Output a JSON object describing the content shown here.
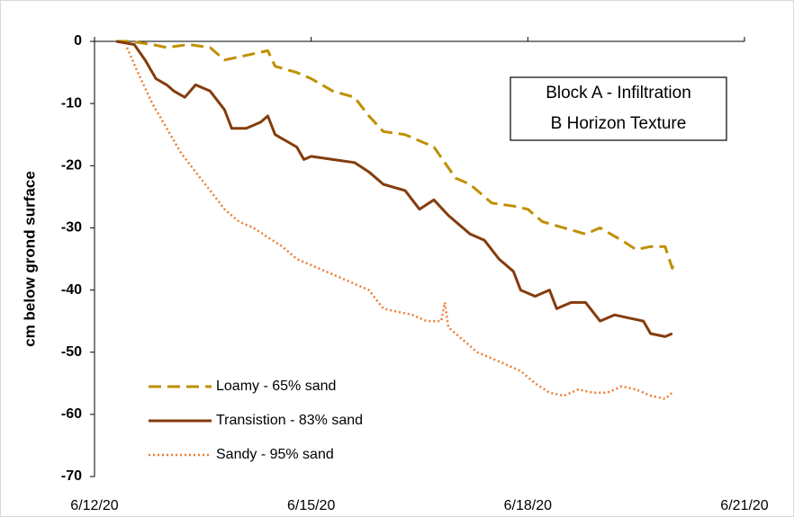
{
  "chart_data": {
    "type": "line",
    "ylabel": "cm below grond surface",
    "annotation": [
      "Block A - Infiltration",
      "B Horizon Texture"
    ],
    "xlim": [
      0,
      9
    ],
    "xticks": [
      {
        "value": 0,
        "label": "6/12/20"
      },
      {
        "value": 3,
        "label": "6/15/20"
      },
      {
        "value": 6,
        "label": "6/18/20"
      },
      {
        "value": 9,
        "label": "6/21/20"
      }
    ],
    "ylim": [
      -70,
      0
    ],
    "yticks": [
      0,
      -10,
      -20,
      -30,
      -40,
      -50,
      -60,
      -70
    ],
    "legend": "lower left",
    "series": [
      {
        "name": "Loamy - 65% sand",
        "color": "#bf9000",
        "dash": "dashed",
        "x": [
          0.3,
          0.5,
          0.8,
          1.0,
          1.3,
          1.6,
          1.8,
          2.0,
          2.2,
          2.4,
          2.5,
          2.8,
          3.0,
          3.3,
          3.6,
          3.8,
          4.0,
          4.3,
          4.5,
          4.7,
          5.0,
          5.2,
          5.5,
          5.8,
          6.0,
          6.2,
          6.5,
          6.8,
          7.0,
          7.3,
          7.5,
          7.7,
          7.9,
          8.0,
          8.02
        ],
        "values": [
          0,
          0,
          -0.5,
          -1,
          -0.5,
          -1,
          -3,
          -2.5,
          -2,
          -1.5,
          -4,
          -5,
          -6,
          -8,
          -9,
          -12,
          -14.5,
          -15,
          -16,
          -17,
          -22,
          -23,
          -26,
          -26.5,
          -27,
          -29,
          -30,
          -31,
          -30,
          -32,
          -33.5,
          -33,
          -33,
          -36.5,
          -35.5
        ]
      },
      {
        "name": "Transistion - 83% sand",
        "color": "#843c0c",
        "dash": "solid",
        "x": [
          0.3,
          0.55,
          0.7,
          0.85,
          1.0,
          1.1,
          1.25,
          1.4,
          1.6,
          1.8,
          1.9,
          2.1,
          2.3,
          2.4,
          2.5,
          2.8,
          2.9,
          3.0,
          3.3,
          3.6,
          3.8,
          4.0,
          4.3,
          4.5,
          4.7,
          4.9,
          5.2,
          5.4,
          5.6,
          5.8,
          5.9,
          6.1,
          6.3,
          6.4,
          6.6,
          6.8,
          7.0,
          7.2,
          7.4,
          7.6,
          7.7,
          7.9,
          8.0
        ],
        "values": [
          0,
          -0.5,
          -3,
          -6,
          -7,
          -8,
          -9,
          -7,
          -8,
          -11,
          -14,
          -14,
          -13,
          -12,
          -15,
          -17,
          -19,
          -18.5,
          -19,
          -19.5,
          -21,
          -23,
          -24,
          -27,
          -25.5,
          -28,
          -31,
          -32,
          -35,
          -37,
          -40,
          -41,
          -40,
          -43,
          -42,
          -42,
          -45,
          -44,
          -44.5,
          -45,
          -47,
          -47.5,
          -47
        ]
      },
      {
        "name": "Sandy - 95% sand",
        "color": "#ed7d31",
        "dash": "dotted",
        "x": [
          0.45,
          0.6,
          0.8,
          1.0,
          1.2,
          1.4,
          1.6,
          1.8,
          2.0,
          2.2,
          2.4,
          2.6,
          2.8,
          3.0,
          3.2,
          3.4,
          3.6,
          3.8,
          4.0,
          4.2,
          4.4,
          4.6,
          4.8,
          4.85,
          4.9,
          5.1,
          5.3,
          5.5,
          5.7,
          5.9,
          6.1,
          6.3,
          6.5,
          6.7,
          6.9,
          7.1,
          7.3,
          7.5,
          7.7,
          7.9,
          8.0
        ],
        "values": [
          -1,
          -5,
          -10,
          -14,
          -18,
          -21,
          -24,
          -27,
          -29,
          -30,
          -31.5,
          -33,
          -35,
          -36,
          -37,
          -38,
          -39,
          -40,
          -43,
          -43.5,
          -44,
          -45,
          -45,
          -42,
          -46,
          -48,
          -50,
          -51,
          -52,
          -53,
          -55,
          -56.5,
          -57,
          -56,
          -56.5,
          -56.5,
          -55.5,
          -56,
          -57,
          -57.5,
          -56.5
        ]
      }
    ]
  }
}
